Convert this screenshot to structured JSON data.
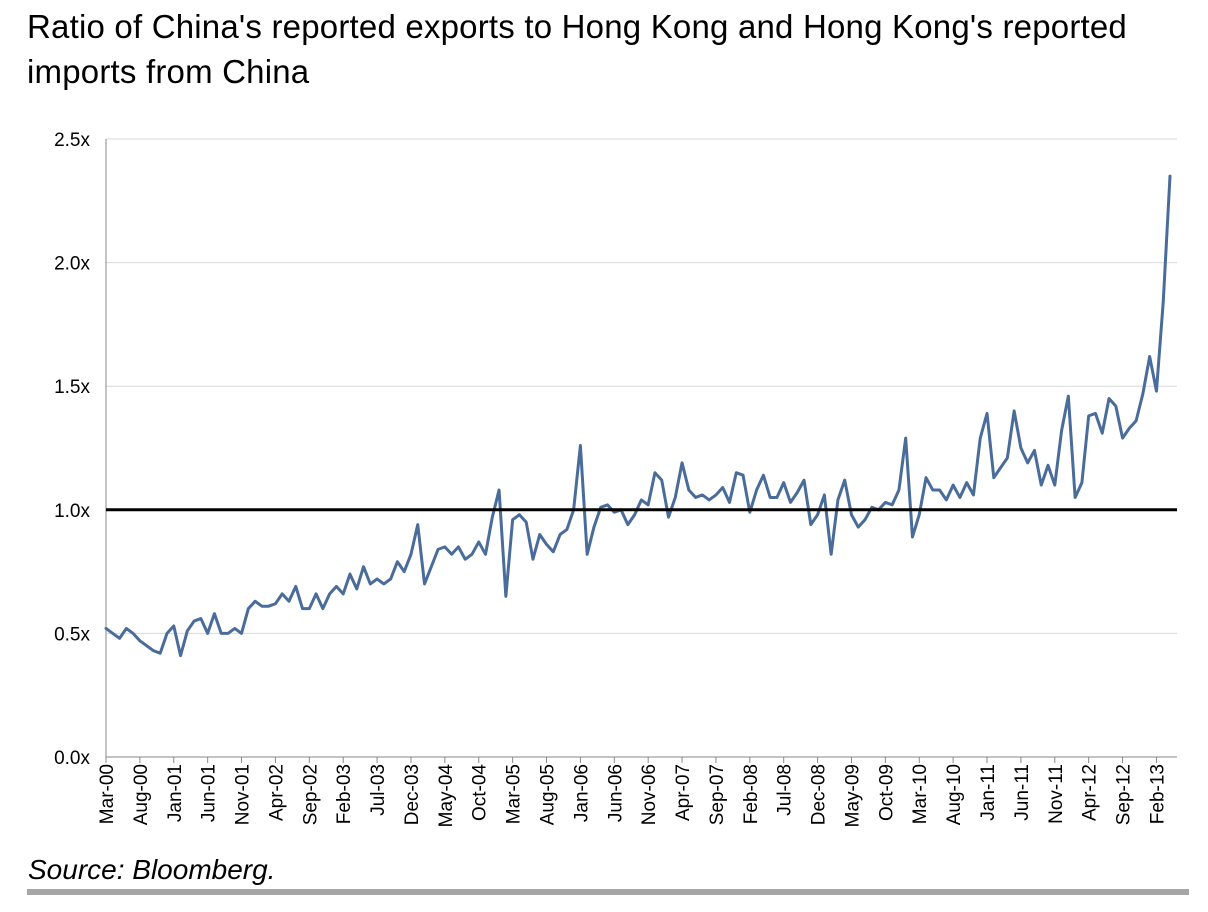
{
  "chart_data": {
    "type": "line",
    "title": "Ratio of China's reported exports to Hong Kong and Hong Kong's reported imports from China",
    "xlabel": "",
    "ylabel": "",
    "x_tick_labels": [
      "Mar-00",
      "Aug-00",
      "Jan-01",
      "Jun-01",
      "Nov-01",
      "Apr-02",
      "Sep-02",
      "Feb-03",
      "Jul-03",
      "Dec-03",
      "May-04",
      "Oct-04",
      "Mar-05",
      "Aug-05",
      "Jan-06",
      "Jun-06",
      "Nov-06",
      "Apr-07",
      "Sep-07",
      "Feb-08",
      "Jul-08",
      "Dec-08",
      "May-09",
      "Oct-09",
      "Mar-10",
      "Aug-10",
      "Jan-11",
      "Jun-11",
      "Nov-11",
      "Apr-12",
      "Sep-12",
      "Feb-13"
    ],
    "y_tick_labels": [
      "0.0x",
      "0.5x",
      "1.0x",
      "1.5x",
      "2.0x",
      "2.5x"
    ],
    "ylim": [
      0,
      2.5
    ],
    "x_start": "Mar-00",
    "x_end": "Jun-13",
    "grid": "horizontal",
    "legend": "none",
    "reference_line": 1.0,
    "colors": {
      "series": "#4a6c9b",
      "reference": "#000000",
      "grid": "#d9d9d9",
      "axis": "#888888"
    },
    "series": [
      {
        "values": [
          0.52,
          0.5,
          0.48,
          0.52,
          0.5,
          0.47,
          0.45,
          0.43,
          0.42,
          0.5,
          0.53,
          0.41,
          0.51,
          0.55,
          0.56,
          0.5,
          0.58,
          0.5,
          0.5,
          0.52,
          0.5,
          0.6,
          0.63,
          0.61,
          0.61,
          0.62,
          0.66,
          0.63,
          0.69,
          0.6,
          0.6,
          0.66,
          0.6,
          0.66,
          0.69,
          0.66,
          0.74,
          0.68,
          0.77,
          0.7,
          0.72,
          0.7,
          0.72,
          0.79,
          0.75,
          0.82,
          0.94,
          0.7,
          0.77,
          0.84,
          0.85,
          0.82,
          0.85,
          0.8,
          0.82,
          0.87,
          0.82,
          0.97,
          1.08,
          0.65,
          0.96,
          0.98,
          0.95,
          0.8,
          0.9,
          0.86,
          0.83,
          0.9,
          0.92,
          1.0,
          1.26,
          0.82,
          0.93,
          1.01,
          1.02,
          0.99,
          1.0,
          0.94,
          0.98,
          1.04,
          1.02,
          1.15,
          1.12,
          0.97,
          1.05,
          1.19,
          1.08,
          1.05,
          1.06,
          1.04,
          1.06,
          1.09,
          1.03,
          1.15,
          1.14,
          0.99,
          1.08,
          1.14,
          1.05,
          1.05,
          1.11,
          1.03,
          1.07,
          1.12,
          0.94,
          0.98,
          1.06,
          0.82,
          1.04,
          1.12,
          0.98,
          0.93,
          0.96,
          1.01,
          1.0,
          1.03,
          1.02,
          1.08,
          1.29,
          0.89,
          0.98,
          1.13,
          1.08,
          1.08,
          1.04,
          1.1,
          1.05,
          1.11,
          1.06,
          1.29,
          1.39,
          1.13,
          1.17,
          1.21,
          1.4,
          1.25,
          1.19,
          1.24,
          1.1,
          1.18,
          1.1,
          1.32,
          1.46,
          1.05,
          1.11,
          1.38,
          1.39,
          1.31,
          1.45,
          1.42,
          1.29,
          1.33,
          1.36,
          1.47,
          1.62,
          1.48,
          1.84,
          2.35
        ]
      }
    ]
  },
  "source": "Source: Bloomberg."
}
